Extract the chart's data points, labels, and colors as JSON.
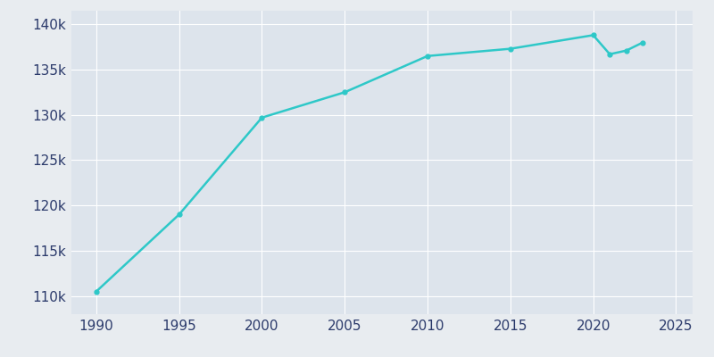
{
  "years": [
    1990,
    1995,
    2000,
    2005,
    2010,
    2015,
    2020,
    2021,
    2022,
    2023
  ],
  "population": [
    110500,
    119000,
    129700,
    132500,
    136500,
    137300,
    138800,
    136700,
    137100,
    138000
  ],
  "line_color": "#2ec8c8",
  "bg_color": "#e8ecf0",
  "plot_bg_color": "#dde4ec",
  "tick_color": "#2b3a6b",
  "grid_color": "#ffffff",
  "xlim": [
    1988.5,
    2026
  ],
  "ylim": [
    108000,
    141500
  ],
  "xticks": [
    1990,
    1995,
    2000,
    2005,
    2010,
    2015,
    2020,
    2025
  ],
  "yticks": [
    110000,
    115000,
    120000,
    125000,
    130000,
    135000,
    140000
  ],
  "ytick_labels": [
    "110k",
    "115k",
    "120k",
    "125k",
    "130k",
    "135k",
    "140k"
  ],
  "xtick_labels": [
    "1990",
    "1995",
    "2000",
    "2005",
    "2010",
    "2015",
    "2020",
    "2025"
  ],
  "marker": "o",
  "marker_size": 3.5,
  "line_width": 1.8,
  "font_size_ticks": 11
}
